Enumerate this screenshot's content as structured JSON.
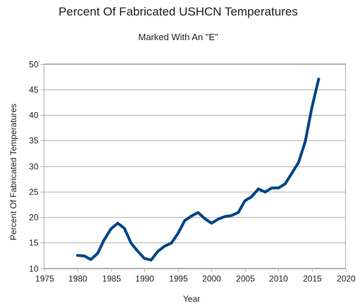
{
  "chart_data": {
    "type": "line",
    "title": "Percent Of Fabricated USHCN Temperatures",
    "subtitle": "Marked With An \"E\"",
    "xlabel": "Year",
    "ylabel": "Percent Of Fabricated Temperatures",
    "xlim": [
      1975,
      2020
    ],
    "ylim": [
      10,
      50
    ],
    "x_ticks": [
      1975,
      1980,
      1985,
      1990,
      1995,
      2000,
      2005,
      2010,
      2015,
      2020
    ],
    "y_ticks": [
      10,
      15,
      20,
      25,
      30,
      35,
      40,
      45,
      50
    ],
    "grid": "horizontal",
    "legend": "none",
    "line_color": "#004586",
    "x": [
      1980,
      1981,
      1982,
      1983,
      1984,
      1985,
      1986,
      1987,
      1988,
      1989,
      1990,
      1991,
      1992,
      1993,
      1994,
      1995,
      1996,
      1997,
      1998,
      1999,
      2000,
      2001,
      2002,
      2003,
      2004,
      2005,
      2006,
      2007,
      2008,
      2009,
      2010,
      2011,
      2012,
      2013,
      2014,
      2015,
      2016
    ],
    "y": [
      12.5,
      12.4,
      11.7,
      12.9,
      15.6,
      17.7,
      18.8,
      17.8,
      14.9,
      13.3,
      11.9,
      11.6,
      13.3,
      14.3,
      14.9,
      16.8,
      19.3,
      20.2,
      20.9,
      19.7,
      18.8,
      19.6,
      20.1,
      20.3,
      20.9,
      23.2,
      24.0,
      25.5,
      24.9,
      25.7,
      25.7,
      26.5,
      28.6,
      30.7,
      34.8,
      41.5,
      47.0
    ]
  }
}
